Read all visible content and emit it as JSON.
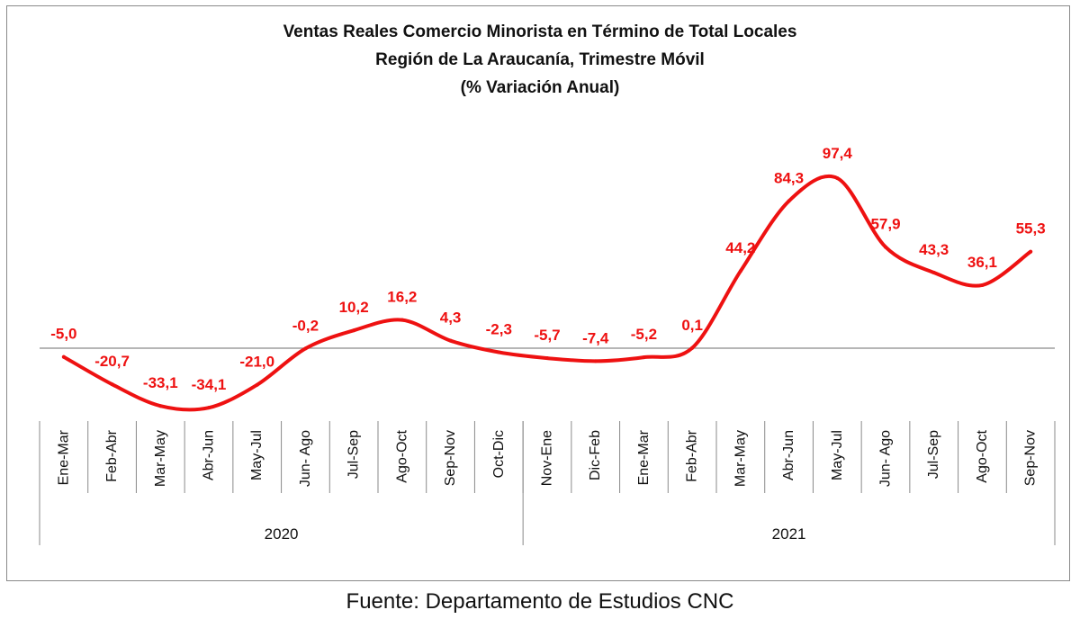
{
  "chart_data": {
    "type": "line",
    "title": "Ventas Reales Comercio Minorista  en Término de Total Locales",
    "subtitle": "Región de La Araucanía, Trimestre Móvil",
    "subtitle2": "(% Variación Anual)",
    "categories": [
      "Ene-Mar",
      "Feb-Abr",
      "Mar-May",
      "Abr-Jun",
      "May-Jul",
      "Jun- Ago",
      "Jul-Sep",
      "Ago-Oct",
      "Sep-Nov",
      "Oct-Dic",
      "Nov-Ene",
      "Dic-Feb",
      "Ene-Mar",
      "Feb-Abr",
      "Mar-May",
      "Abr-Jun",
      "May-Jul",
      "Jun- Ago",
      "Jul-Sep",
      "Ago-Oct",
      "Sep-Nov"
    ],
    "groups": [
      {
        "label": "2020",
        "count": 10
      },
      {
        "label": "2021",
        "count": 11
      }
    ],
    "series": [
      {
        "values": [
          -5.0,
          -20.7,
          -33.1,
          -34.1,
          -21.0,
          -0.2,
          10.2,
          16.2,
          4.3,
          -2.3,
          -5.7,
          -7.4,
          -5.2,
          0.1,
          44.2,
          84.3,
          97.4,
          57.9,
          43.3,
          36.1,
          55.3
        ],
        "labels": [
          "-5,0",
          "-20,7",
          "-33,1",
          "-34,1",
          "-21,0",
          "-0,2",
          "10,2",
          "16,2",
          "4,3",
          "-2,3",
          "-5,7",
          "-7,4",
          "-5,2",
          "0,1",
          "44,2",
          "84,3",
          "97,4",
          "57,9",
          "43,3",
          "36,1",
          "55,3"
        ],
        "color": "#ee1111"
      }
    ],
    "xlabel": "",
    "ylabel": "",
    "grid": false,
    "legend": "none"
  },
  "source_text": "Fuente: Departamento de Estudios CNC"
}
